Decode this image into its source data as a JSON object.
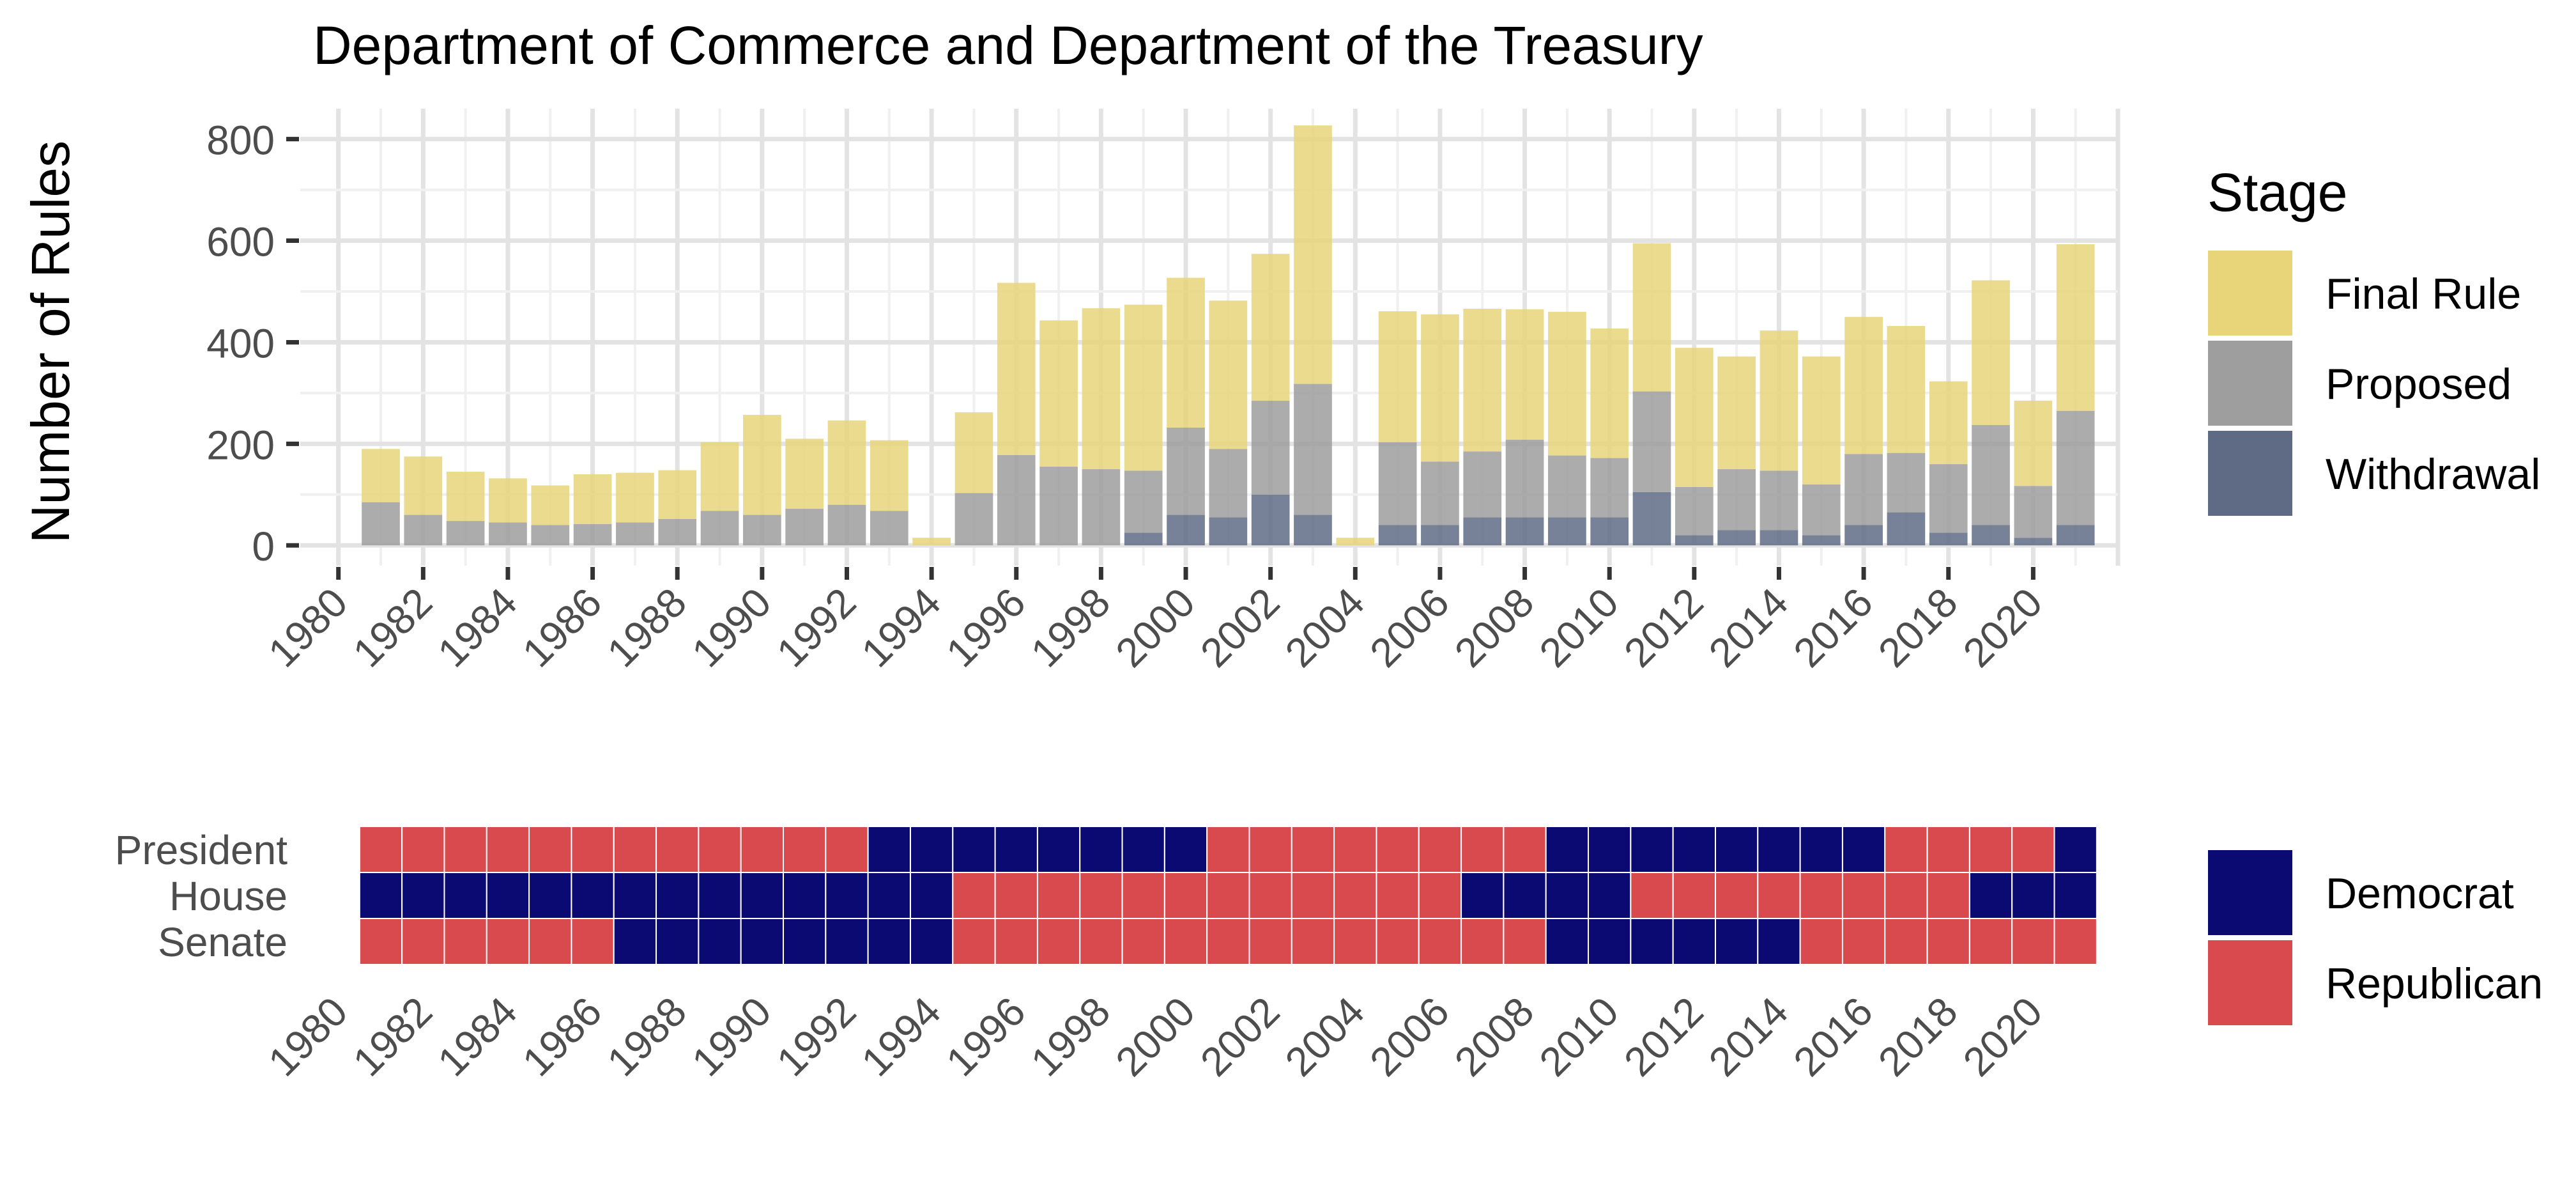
{
  "colors": {
    "final_rule": "#E8D57A",
    "proposed": "#9E9E9E",
    "withdrawal": "#5F6B85",
    "democrat": "#0A0A72",
    "republican": "#D94A4F",
    "grid_major": "#E3E3E3",
    "grid_minor": "#F0F0F0",
    "text": "#000000",
    "tick_text": "#4D4D4D"
  },
  "chart_data": [
    {
      "type": "bar",
      "stacked": true,
      "title": "Department of Commerce and Department of the Treasury",
      "xlabel": "",
      "ylabel": "Number of Rules",
      "xlim": [
        1979.1,
        2022.0
      ],
      "ylim": [
        -40,
        860
      ],
      "yticks": [
        0,
        200,
        400,
        600,
        800
      ],
      "xticks": [
        "1980",
        "1982",
        "1984",
        "1986",
        "1988",
        "1990",
        "1992",
        "1994",
        "1996",
        "1998",
        "2000",
        "2002",
        "2004",
        "2006",
        "2008",
        "2010",
        "2012",
        "2014",
        "2016",
        "2018",
        "2020"
      ],
      "grid": true,
      "legend": {
        "title": "Stage",
        "position": "right",
        "labels": [
          "Final Rule",
          "Proposed",
          "Withdrawal"
        ]
      },
      "x": [
        1981,
        1982,
        1983,
        1984,
        1985,
        1986,
        1987,
        1988,
        1989,
        1990,
        1991,
        1992,
        1993,
        1994,
        1995,
        1996,
        1997,
        1998,
        1999,
        2000,
        2001,
        2002,
        2003,
        2004,
        2005,
        2006,
        2007,
        2008,
        2009,
        2010,
        2011,
        2012,
        2013,
        2014,
        2015,
        2016,
        2017,
        2018,
        2019,
        2020,
        2021
      ],
      "series": [
        {
          "name": "Withdrawal",
          "values": [
            0,
            0,
            0,
            0,
            0,
            0,
            0,
            0,
            0,
            0,
            0,
            0,
            0,
            0,
            0,
            0,
            0,
            0,
            25,
            60,
            55,
            100,
            60,
            0,
            40,
            40,
            55,
            55,
            55,
            55,
            105,
            20,
            30,
            30,
            20,
            40,
            65,
            25,
            40,
            15,
            40
          ]
        },
        {
          "name": "Proposed",
          "values": [
            85,
            60,
            48,
            45,
            40,
            42,
            45,
            52,
            68,
            60,
            72,
            80,
            68,
            0,
            103,
            178,
            155,
            150,
            122,
            172,
            135,
            185,
            258,
            0,
            163,
            125,
            130,
            153,
            122,
            117,
            198,
            95,
            120,
            117,
            100,
            140,
            117,
            135,
            197,
            102,
            225
          ]
        },
        {
          "name": "Final Rule",
          "values": [
            105,
            115,
            97,
            87,
            78,
            98,
            98,
            96,
            135,
            197,
            138,
            166,
            139,
            15,
            159,
            339,
            288,
            317,
            327,
            295,
            292,
            289,
            509,
            15,
            258,
            290,
            281,
            257,
            283,
            255,
            292,
            274,
            222,
            276,
            252,
            270,
            250,
            163,
            285,
            168,
            328
          ]
        }
      ]
    },
    {
      "type": "heatmap",
      "rows": [
        "President",
        "House",
        "Senate"
      ],
      "x": [
        1981,
        1982,
        1983,
        1984,
        1985,
        1986,
        1987,
        1988,
        1989,
        1990,
        1991,
        1992,
        1993,
        1994,
        1995,
        1996,
        1997,
        1998,
        1999,
        2000,
        2001,
        2002,
        2003,
        2004,
        2005,
        2006,
        2007,
        2008,
        2009,
        2010,
        2011,
        2012,
        2013,
        2014,
        2015,
        2016,
        2017,
        2018,
        2019,
        2020,
        2021
      ],
      "xticks": [
        "1980",
        "1982",
        "1984",
        "1986",
        "1988",
        "1990",
        "1992",
        "1994",
        "1996",
        "1998",
        "2000",
        "2002",
        "2004",
        "2006",
        "2008",
        "2010",
        "2012",
        "2014",
        "2016",
        "2018",
        "2020"
      ],
      "legend": {
        "position": "right",
        "labels": [
          "Democrat",
          "Republican"
        ]
      },
      "values": {
        "President": [
          "R",
          "R",
          "R",
          "R",
          "R",
          "R",
          "R",
          "R",
          "R",
          "R",
          "R",
          "R",
          "D",
          "D",
          "D",
          "D",
          "D",
          "D",
          "D",
          "D",
          "R",
          "R",
          "R",
          "R",
          "R",
          "R",
          "R",
          "R",
          "D",
          "D",
          "D",
          "D",
          "D",
          "D",
          "D",
          "D",
          "R",
          "R",
          "R",
          "R",
          "D"
        ],
        "House": [
          "D",
          "D",
          "D",
          "D",
          "D",
          "D",
          "D",
          "D",
          "D",
          "D",
          "D",
          "D",
          "D",
          "D",
          "R",
          "R",
          "R",
          "R",
          "R",
          "R",
          "R",
          "R",
          "R",
          "R",
          "R",
          "R",
          "D",
          "D",
          "D",
          "D",
          "R",
          "R",
          "R",
          "R",
          "R",
          "R",
          "R",
          "R",
          "D",
          "D",
          "D"
        ],
        "Senate": [
          "R",
          "R",
          "R",
          "R",
          "R",
          "R",
          "D",
          "D",
          "D",
          "D",
          "D",
          "D",
          "D",
          "D",
          "R",
          "R",
          "R",
          "R",
          "R",
          "R",
          "R",
          "R",
          "R",
          "R",
          "R",
          "R",
          "R",
          "R",
          "D",
          "D",
          "D",
          "D",
          "D",
          "D",
          "R",
          "R",
          "R",
          "R",
          "R",
          "R",
          "R"
        ]
      }
    }
  ]
}
